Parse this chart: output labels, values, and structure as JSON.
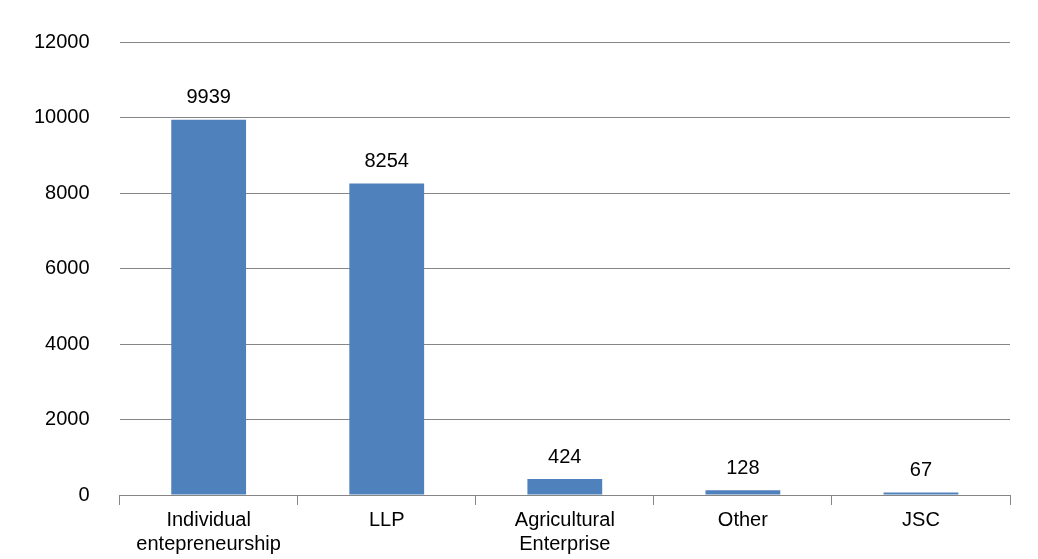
{
  "chart_data": {
    "type": "bar",
    "categories": [
      "Individual entepreneurship",
      "LLP",
      "Agricultural Enterprise",
      "Other",
      "JSC"
    ],
    "values": [
      9939,
      8254,
      424,
      128,
      67
    ],
    "color": "#4f81bd",
    "ylim": [
      0,
      12000
    ],
    "yticks": [
      0,
      2000,
      4000,
      6000,
      8000,
      10000,
      12000
    ],
    "grid": "y",
    "data_labels": true
  }
}
